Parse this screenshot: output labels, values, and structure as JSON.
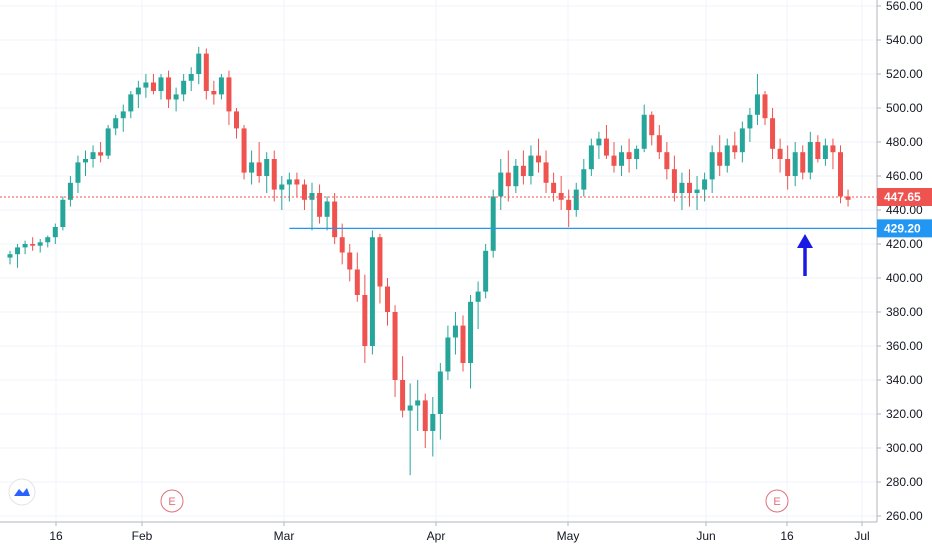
{
  "chart_data": {
    "type": "candlestick",
    "y_axis": {
      "position": "right",
      "ylim": [
        258,
        566
      ],
      "ticks": [
        "260.00",
        "280.00",
        "300.00",
        "320.00",
        "340.00",
        "360.00",
        "380.00",
        "400.00",
        "420.00",
        "440.00",
        "460.00",
        "480.00",
        "500.00",
        "520.00",
        "540.00",
        "560.00"
      ]
    },
    "x_axis": {
      "ticks": [
        "16",
        "Feb",
        "Mar",
        "Apr",
        "May",
        "Jun",
        "16",
        "Jul"
      ]
    },
    "price_line": {
      "value": 447.65,
      "label": "447.65",
      "color": "#ef5350"
    },
    "support_line": {
      "value": 429.2,
      "label": "429.20",
      "color": "#2196f3"
    },
    "arrow": {
      "color": "#1a1ae6",
      "direction": "up"
    },
    "earnings_markers": [
      {
        "label": "E"
      },
      {
        "label": "E"
      }
    ],
    "colors": {
      "up": "#26a69a",
      "down": "#ef5350",
      "grid": "#f0f3fa"
    },
    "candles": [
      [
        412,
        416,
        408,
        414
      ],
      [
        414,
        420,
        406,
        418
      ],
      [
        418,
        422,
        414,
        420
      ],
      [
        420,
        424,
        416,
        419
      ],
      [
        419,
        423,
        415,
        421
      ],
      [
        421,
        425,
        418,
        424
      ],
      [
        424,
        432,
        420,
        430
      ],
      [
        430,
        448,
        428,
        446
      ],
      [
        446,
        460,
        442,
        456
      ],
      [
        456,
        472,
        450,
        468
      ],
      [
        468,
        475,
        460,
        470
      ],
      [
        470,
        478,
        465,
        474
      ],
      [
        474,
        480,
        468,
        472
      ],
      [
        472,
        490,
        470,
        488
      ],
      [
        488,
        496,
        484,
        494
      ],
      [
        494,
        502,
        486,
        498
      ],
      [
        498,
        510,
        494,
        508
      ],
      [
        508,
        516,
        500,
        512
      ],
      [
        512,
        520,
        506,
        515
      ],
      [
        515,
        520,
        508,
        510
      ],
      [
        510,
        520,
        505,
        518
      ],
      [
        518,
        522,
        500,
        505
      ],
      [
        505,
        512,
        498,
        508
      ],
      [
        508,
        520,
        504,
        516
      ],
      [
        516,
        524,
        510,
        520
      ],
      [
        520,
        536,
        514,
        532
      ],
      [
        532,
        535,
        505,
        510
      ],
      [
        510,
        516,
        502,
        508
      ],
      [
        508,
        520,
        505,
        518
      ],
      [
        518,
        522,
        490,
        498
      ],
      [
        498,
        500,
        482,
        488
      ],
      [
        488,
        490,
        458,
        462
      ],
      [
        462,
        475,
        455,
        468
      ],
      [
        468,
        480,
        456,
        460
      ],
      [
        460,
        474,
        450,
        470
      ],
      [
        470,
        475,
        445,
        452
      ],
      [
        452,
        460,
        440,
        455
      ],
      [
        455,
        462,
        445,
        458
      ],
      [
        458,
        462,
        448,
        455
      ],
      [
        455,
        458,
        440,
        446
      ],
      [
        446,
        456,
        428,
        450
      ],
      [
        450,
        455,
        432,
        436
      ],
      [
        436,
        448,
        428,
        445
      ],
      [
        445,
        450,
        420,
        424
      ],
      [
        424,
        432,
        408,
        415
      ],
      [
        415,
        420,
        398,
        405
      ],
      [
        405,
        415,
        386,
        390
      ],
      [
        390,
        402,
        350,
        360
      ],
      [
        360,
        428,
        355,
        424
      ],
      [
        424,
        426,
        385,
        395
      ],
      [
        395,
        400,
        372,
        380
      ],
      [
        380,
        384,
        330,
        340
      ],
      [
        340,
        354,
        318,
        322
      ],
      [
        322,
        338,
        284,
        325
      ],
      [
        325,
        340,
        310,
        328
      ],
      [
        328,
        332,
        300,
        310
      ],
      [
        310,
        330,
        295,
        320
      ],
      [
        320,
        350,
        305,
        345
      ],
      [
        345,
        372,
        340,
        365
      ],
      [
        365,
        380,
        355,
        372
      ],
      [
        372,
        378,
        345,
        350
      ],
      [
        350,
        390,
        335,
        386
      ],
      [
        386,
        398,
        370,
        392
      ],
      [
        392,
        420,
        388,
        416
      ],
      [
        416,
        452,
        412,
        448
      ],
      [
        448,
        470,
        440,
        462
      ],
      [
        462,
        475,
        445,
        454
      ],
      [
        454,
        470,
        450,
        466
      ],
      [
        466,
        475,
        455,
        460
      ],
      [
        460,
        478,
        455,
        472
      ],
      [
        472,
        482,
        462,
        468
      ],
      [
        468,
        475,
        450,
        456
      ],
      [
        456,
        462,
        445,
        450
      ],
      [
        450,
        460,
        440,
        446
      ],
      [
        446,
        452,
        430,
        440
      ],
      [
        440,
        456,
        436,
        452
      ],
      [
        452,
        470,
        448,
        464
      ],
      [
        464,
        482,
        460,
        478
      ],
      [
        478,
        486,
        470,
        482
      ],
      [
        482,
        490,
        470,
        472
      ],
      [
        472,
        480,
        462,
        466
      ],
      [
        466,
        478,
        460,
        474
      ],
      [
        474,
        482,
        462,
        470
      ],
      [
        470,
        478,
        464,
        476
      ],
      [
        476,
        502,
        474,
        496
      ],
      [
        496,
        498,
        478,
        484
      ],
      [
        484,
        490,
        470,
        474
      ],
      [
        474,
        480,
        458,
        464
      ],
      [
        464,
        472,
        445,
        450
      ],
      [
        450,
        462,
        440,
        456
      ],
      [
        456,
        464,
        442,
        450
      ],
      [
        450,
        460,
        440,
        452
      ],
      [
        452,
        462,
        445,
        458
      ],
      [
        458,
        478,
        450,
        474
      ],
      [
        474,
        484,
        460,
        466
      ],
      [
        466,
        482,
        462,
        478
      ],
      [
        478,
        486,
        470,
        474
      ],
      [
        474,
        492,
        468,
        488
      ],
      [
        488,
        500,
        480,
        496
      ],
      [
        496,
        520,
        490,
        508
      ],
      [
        508,
        510,
        490,
        494
      ],
      [
        494,
        500,
        470,
        476
      ],
      [
        476,
        482,
        462,
        470
      ],
      [
        470,
        478,
        452,
        460
      ],
      [
        460,
        480,
        454,
        474
      ],
      [
        474,
        478,
        458,
        462
      ],
      [
        462,
        486,
        458,
        480
      ],
      [
        480,
        484,
        468,
        470
      ],
      [
        470,
        482,
        466,
        478
      ],
      [
        478,
        482,
        464,
        474
      ],
      [
        474,
        478,
        444,
        448
      ],
      [
        448,
        452,
        442,
        446
      ]
    ]
  }
}
